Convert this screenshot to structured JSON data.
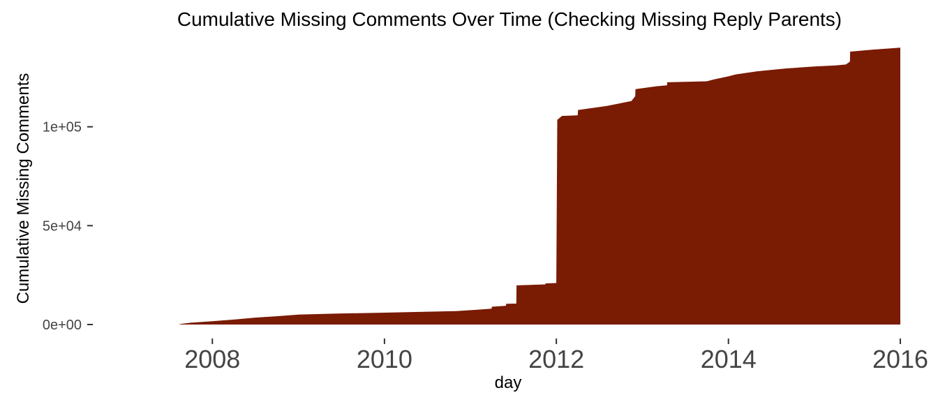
{
  "chart_data": {
    "type": "area",
    "title": "Cumulative Missing Comments Over Time (Checking Missing Reply Parents)",
    "xlabel": "day",
    "ylabel": "Cumulative Missing Comments",
    "x_ticks": [
      "2008",
      "2010",
      "2012",
      "2014",
      "2016"
    ],
    "y_ticks": [
      "0e+00",
      "5e+04",
      "1e+05"
    ],
    "y_tick_values": [
      0,
      50000,
      100000
    ],
    "xlim": [
      "2006-09-01",
      "2016-01-01"
    ],
    "ylim": [
      0,
      150000
    ],
    "grid": false,
    "legend": "none",
    "fill_color": "#7a1b03",
    "x": [
      "2007-08-15",
      "2007-10-01",
      "2008-01-01",
      "2008-04-01",
      "2008-07-01",
      "2008-10-01",
      "2009-01-01",
      "2009-06-01",
      "2010-01-01",
      "2010-06-01",
      "2010-11-01",
      "2011-02-01",
      "2011-04-01",
      "2011-04-02",
      "2011-06-01",
      "2011-06-02",
      "2011-07-15",
      "2011-07-16",
      "2011-11-15",
      "2011-11-16",
      "2012-01-01",
      "2012-01-05",
      "2012-01-15",
      "2012-01-25",
      "2012-04-01",
      "2012-04-02",
      "2012-08-01",
      "2012-11-15",
      "2012-12-01",
      "2012-12-02",
      "2013-03-01",
      "2013-04-15",
      "2013-04-16",
      "2013-10-01",
      "2013-11-01",
      "2014-01-01",
      "2014-02-01",
      "2014-04-01",
      "2014-05-01",
      "2014-09-01",
      "2015-01-01",
      "2015-04-01",
      "2015-05-15",
      "2015-06-01",
      "2015-06-02",
      "2015-09-01",
      "2016-01-01"
    ],
    "values": [
      200,
      900,
      1700,
      2500,
      3500,
      4200,
      5000,
      5500,
      6000,
      6400,
      6800,
      7500,
      8000,
      9000,
      9500,
      10500,
      10600,
      19800,
      20300,
      20800,
      21000,
      103500,
      104500,
      105500,
      105800,
      108500,
      110500,
      113000,
      115500,
      119000,
      120500,
      121000,
      122500,
      123000,
      124000,
      125500,
      126500,
      127500,
      128000,
      129500,
      130500,
      131000,
      131500,
      133000,
      138000,
      139000,
      140000
    ]
  }
}
